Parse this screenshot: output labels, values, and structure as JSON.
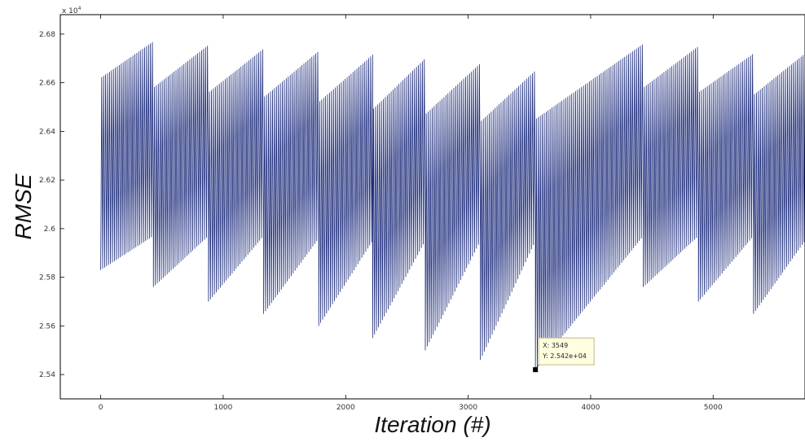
{
  "chart_data": {
    "type": "line",
    "xlabel": "Iteration (#)",
    "ylabel": "RMSE",
    "exponent_label": "x 10",
    "exponent_power": "4",
    "xlim": [
      -330,
      5750
    ],
    "ylim": [
      25300,
      26880
    ],
    "x_ticks": [
      0,
      1000,
      2000,
      3000,
      4000,
      5000
    ],
    "y_ticks": [
      25400,
      25600,
      25800,
      26000,
      26200,
      26400,
      26600,
      26800
    ],
    "x_tick_labels": [
      "0",
      "1000",
      "2000",
      "3000",
      "4000",
      "5000"
    ],
    "y_tick_labels": [
      "2.54",
      "2.56",
      "2.58",
      "2.6",
      "2.62",
      "2.64",
      "2.66",
      "2.68"
    ],
    "line_color": "#1b2a7a",
    "oscillation_period": 8,
    "segments": [
      {
        "x_start": 0,
        "x_end": 430,
        "max_start": 26620,
        "max_end": 26770,
        "min_start": 25830,
        "min_end": 25970
      },
      {
        "x_start": 430,
        "x_end": 880,
        "max_start": 26580,
        "max_end": 26755,
        "min_start": 25760,
        "min_end": 25970
      },
      {
        "x_start": 880,
        "x_end": 1330,
        "max_start": 26560,
        "max_end": 26740,
        "min_start": 25700,
        "min_end": 25970
      },
      {
        "x_start": 1330,
        "x_end": 1780,
        "max_start": 26540,
        "max_end": 26730,
        "min_start": 25650,
        "min_end": 25960
      },
      {
        "x_start": 1780,
        "x_end": 2220,
        "max_start": 26520,
        "max_end": 26715,
        "min_start": 25600,
        "min_end": 25950
      },
      {
        "x_start": 2220,
        "x_end": 2650,
        "max_start": 26490,
        "max_end": 26700,
        "min_start": 25550,
        "min_end": 25950
      },
      {
        "x_start": 2650,
        "x_end": 3100,
        "max_start": 26470,
        "max_end": 26680,
        "min_start": 25500,
        "min_end": 25950
      },
      {
        "x_start": 3100,
        "x_end": 3549,
        "max_start": 26440,
        "max_end": 26650,
        "min_start": 25460,
        "min_end": 25950
      },
      {
        "x_start": 3549,
        "x_end": 4430,
        "max_start": 26450,
        "max_end": 26760,
        "min_start": 25420,
        "min_end": 25970
      },
      {
        "x_start": 4430,
        "x_end": 4880,
        "max_start": 26580,
        "max_end": 26750,
        "min_start": 25760,
        "min_end": 25970
      },
      {
        "x_start": 4880,
        "x_end": 5330,
        "max_start": 26560,
        "max_end": 26720,
        "min_start": 25700,
        "min_end": 25970
      },
      {
        "x_start": 5330,
        "x_end": 5750,
        "max_start": 26550,
        "max_end": 26720,
        "min_start": 25650,
        "min_end": 25950
      }
    ],
    "datatip": {
      "x": 3549,
      "y": 25420,
      "x_text": "X: 3549",
      "y_text": "Y: 2.542e+04"
    }
  }
}
